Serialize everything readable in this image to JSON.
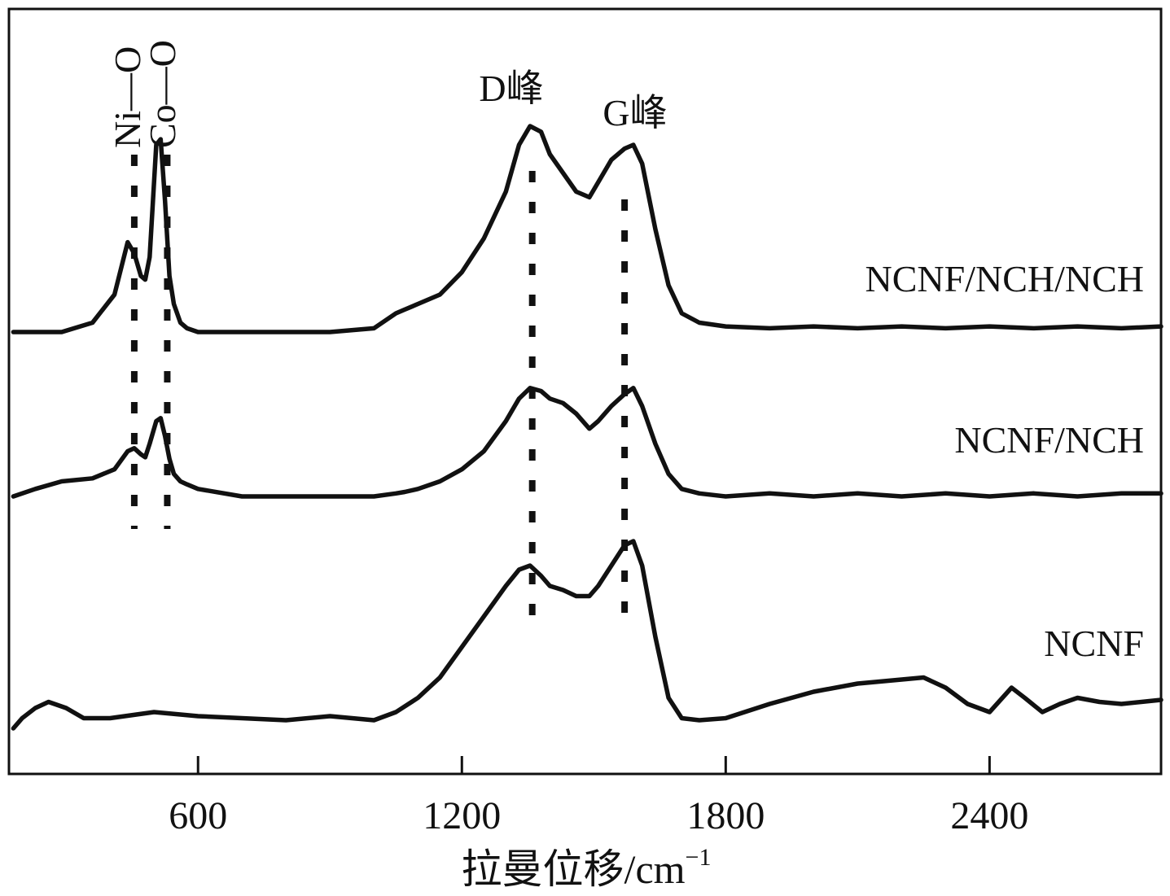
{
  "chart_data": {
    "type": "line",
    "xlabel": "拉曼位移/cm",
    "xlabel_superscript": "−1",
    "ylabel": "",
    "title": "",
    "xlim": [
      170,
      2790
    ],
    "x_ticks": [
      600,
      1200,
      1800,
      2400
    ],
    "y_ticks_shown": false,
    "grid": false,
    "legend": "none",
    "series": [
      {
        "name": "NCNF/NCH/NCH",
        "label": "NCNF/NCH/NCH",
        "x": [
          180,
          230,
          290,
          360,
          410,
          440,
          455,
          470,
          480,
          490,
          505,
          515,
          525,
          535,
          545,
          560,
          575,
          600,
          700,
          800,
          900,
          1000,
          1050,
          1070,
          1100,
          1150,
          1200,
          1250,
          1300,
          1330,
          1355,
          1380,
          1400,
          1430,
          1460,
          1490,
          1510,
          1540,
          1570,
          1590,
          1610,
          1640,
          1670,
          1700,
          1740,
          1800,
          1900,
          2000,
          2100,
          2200,
          2300,
          2400,
          2500,
          2600,
          2700,
          2790
        ],
        "y": [
          0.0,
          0.0,
          0.0,
          0.05,
          0.2,
          0.48,
          0.42,
          0.3,
          0.28,
          0.4,
          1.0,
          1.03,
          0.7,
          0.3,
          0.15,
          0.05,
          0.02,
          0.0,
          0.0,
          0.0,
          0.0,
          0.02,
          0.1,
          0.12,
          0.15,
          0.2,
          0.32,
          0.5,
          0.75,
          1.0,
          1.1,
          1.07,
          0.95,
          0.85,
          0.75,
          0.72,
          0.8,
          0.92,
          0.98,
          1.0,
          0.9,
          0.55,
          0.25,
          0.1,
          0.05,
          0.03,
          0.02,
          0.03,
          0.02,
          0.03,
          0.02,
          0.03,
          0.02,
          0.03,
          0.02,
          0.03
        ]
      },
      {
        "name": "NCNF/NCH",
        "label": "NCNF/NCH",
        "x": [
          180,
          230,
          290,
          360,
          410,
          440,
          455,
          470,
          480,
          490,
          505,
          515,
          525,
          535,
          545,
          560,
          575,
          600,
          700,
          800,
          900,
          1000,
          1050,
          1070,
          1100,
          1150,
          1200,
          1250,
          1300,
          1330,
          1355,
          1380,
          1400,
          1430,
          1460,
          1490,
          1510,
          1540,
          1570,
          1590,
          1610,
          1640,
          1670,
          1700,
          1740,
          1800,
          1900,
          2000,
          2100,
          2200,
          2300,
          2400,
          2500,
          2600,
          2700,
          2790
        ],
        "y": [
          0.0,
          0.05,
          0.1,
          0.12,
          0.18,
          0.3,
          0.32,
          0.28,
          0.26,
          0.35,
          0.5,
          0.52,
          0.4,
          0.25,
          0.15,
          0.1,
          0.08,
          0.05,
          0.0,
          0.0,
          0.0,
          0.0,
          0.02,
          0.03,
          0.05,
          0.1,
          0.18,
          0.3,
          0.5,
          0.65,
          0.72,
          0.7,
          0.65,
          0.62,
          0.55,
          0.45,
          0.5,
          0.6,
          0.68,
          0.72,
          0.6,
          0.35,
          0.15,
          0.05,
          0.02,
          0.0,
          0.02,
          0.0,
          0.02,
          0.0,
          0.02,
          0.0,
          0.02,
          0.0,
          0.02,
          0.02
        ]
      },
      {
        "name": "NCNF",
        "label": "NCNF",
        "x": [
          180,
          200,
          230,
          260,
          300,
          340,
          400,
          500,
          600,
          700,
          800,
          900,
          1000,
          1050,
          1100,
          1150,
          1200,
          1250,
          1300,
          1330,
          1355,
          1380,
          1400,
          1430,
          1460,
          1490,
          1510,
          1540,
          1570,
          1590,
          1610,
          1640,
          1670,
          1700,
          1740,
          1800,
          1900,
          2000,
          2100,
          2200,
          2250,
          2300,
          2350,
          2400,
          2450,
          2480,
          2520,
          2560,
          2600,
          2650,
          2700,
          2790
        ],
        "y": [
          0.0,
          0.05,
          0.1,
          0.13,
          0.1,
          0.05,
          0.05,
          0.08,
          0.06,
          0.05,
          0.04,
          0.06,
          0.04,
          0.08,
          0.15,
          0.25,
          0.4,
          0.55,
          0.7,
          0.78,
          0.8,
          0.75,
          0.7,
          0.68,
          0.65,
          0.65,
          0.7,
          0.8,
          0.9,
          0.92,
          0.8,
          0.45,
          0.15,
          0.05,
          0.04,
          0.05,
          0.12,
          0.18,
          0.22,
          0.24,
          0.25,
          0.2,
          0.12,
          0.08,
          0.2,
          0.15,
          0.08,
          0.12,
          0.15,
          0.13,
          0.12,
          0.14
        ]
      }
    ],
    "annotations": [
      {
        "text": "Ni—O",
        "x": 455,
        "orientation": "vertical"
      },
      {
        "text": "Co—O",
        "x": 510,
        "orientation": "vertical"
      },
      {
        "text": "D峰",
        "x": 1360,
        "orientation": "horizontal"
      },
      {
        "text": "G峰",
        "x": 1570,
        "orientation": "horizontal"
      }
    ],
    "guide_lines_x": [
      455,
      530,
      1360,
      1570
    ]
  }
}
